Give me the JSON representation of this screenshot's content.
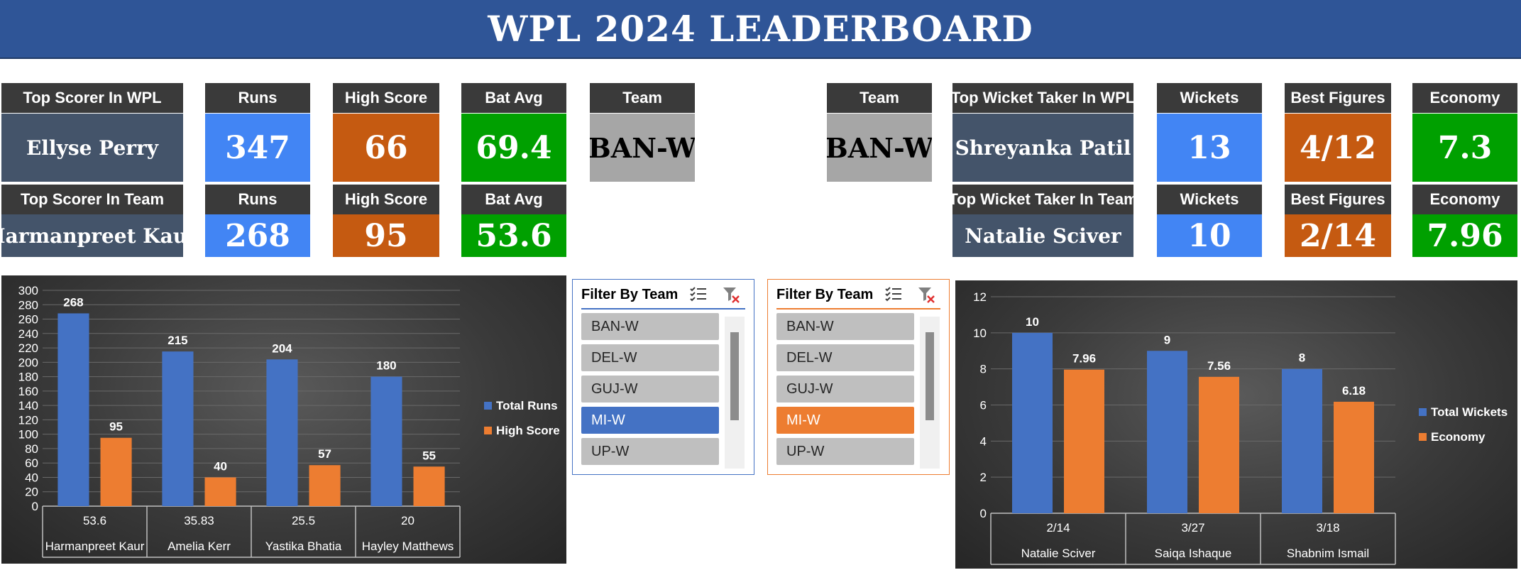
{
  "title": "WPL 2024 LEADERBOARD",
  "colors": {
    "banner": "#2f5597",
    "name": "#44546a",
    "blue": "#4285f4",
    "orange": "#c55a11",
    "green": "#00a000",
    "gray": "#a6a6a6",
    "bar_blue": "#4472c4",
    "bar_orange": "#ed7d31"
  },
  "batting": {
    "league": {
      "label_name": "Top Scorer In WPL",
      "name": "Ellyse Perry",
      "label_runs": "Runs",
      "runs": "347",
      "label_high": "High Score",
      "high": "66",
      "label_avg": "Bat Avg",
      "avg": "69.4"
    },
    "team": {
      "label_name": "Top Scorer In Team",
      "name": "Harmanpreet Kaur",
      "label_runs": "Runs",
      "runs": "268",
      "label_high": "High Score",
      "high": "95",
      "label_avg": "Bat Avg",
      "avg": "53.6"
    },
    "team_label": "Team",
    "team_value": "BAN-W"
  },
  "bowling": {
    "team_label": "Team",
    "team_value": "BAN-W",
    "league": {
      "label_name": "Top Wicket Taker In WPL",
      "name": "Shreyanka Patil",
      "label_wkts": "Wickets",
      "wkts": "13",
      "label_best": "Best Figures",
      "best": "4/12",
      "label_econ": "Economy",
      "econ": "7.3"
    },
    "team": {
      "label_name": "Top Wicket Taker In Team",
      "name": "Natalie Sciver",
      "label_wkts": "Wickets",
      "wkts": "10",
      "label_best": "Best Figures",
      "best": "2/14",
      "label_econ": "Economy",
      "econ": "7.96"
    }
  },
  "slicers": [
    {
      "title": "Filter By Team",
      "items": [
        "BAN-W",
        "DEL-W",
        "GUJ-W",
        "MI-W",
        "UP-W"
      ],
      "selected": "MI-W",
      "accent": "#4472c4",
      "icons": [
        "multi-select-icon",
        "clear-filter-icon"
      ]
    },
    {
      "title": "Filter By Team",
      "items": [
        "BAN-W",
        "DEL-W",
        "GUJ-W",
        "MI-W",
        "UP-W"
      ],
      "selected": "MI-W",
      "accent": "#ed7d31",
      "icons": [
        "multi-select-icon",
        "clear-filter-icon"
      ]
    }
  ],
  "chart_data": [
    {
      "type": "bar",
      "categories": [
        "Harmanpreet Kaur",
        "Amelia Kerr",
        "Yastika Bhatia",
        "Hayley Matthews"
      ],
      "sub_labels": [
        "53.6",
        "35.83",
        "25.5",
        "20"
      ],
      "series": [
        {
          "name": "Total Runs",
          "values": [
            268,
            215,
            204,
            180
          ],
          "color": "#4472c4"
        },
        {
          "name": "High Score",
          "values": [
            95,
            40,
            57,
            55
          ],
          "color": "#ed7d31"
        }
      ],
      "ylim": [
        0,
        300
      ],
      "yticks": [
        0,
        20,
        40,
        60,
        80,
        100,
        120,
        140,
        160,
        180,
        200,
        220,
        240,
        260,
        280,
        300
      ],
      "grid": true,
      "legend": "right"
    },
    {
      "type": "bar",
      "categories": [
        "Natalie Sciver",
        "Saiqa Ishaque",
        "Shabnim Ismail"
      ],
      "sub_labels": [
        "2/14",
        "3/27",
        "3/18"
      ],
      "series": [
        {
          "name": "Total Wickets",
          "values": [
            10,
            9,
            8
          ],
          "color": "#4472c4"
        },
        {
          "name": "Economy",
          "values": [
            7.96,
            7.56,
            6.18
          ],
          "color": "#ed7d31"
        }
      ],
      "ylim": [
        0,
        12
      ],
      "yticks": [
        0,
        2,
        4,
        6,
        8,
        10,
        12
      ],
      "grid": true,
      "legend": "right"
    }
  ]
}
